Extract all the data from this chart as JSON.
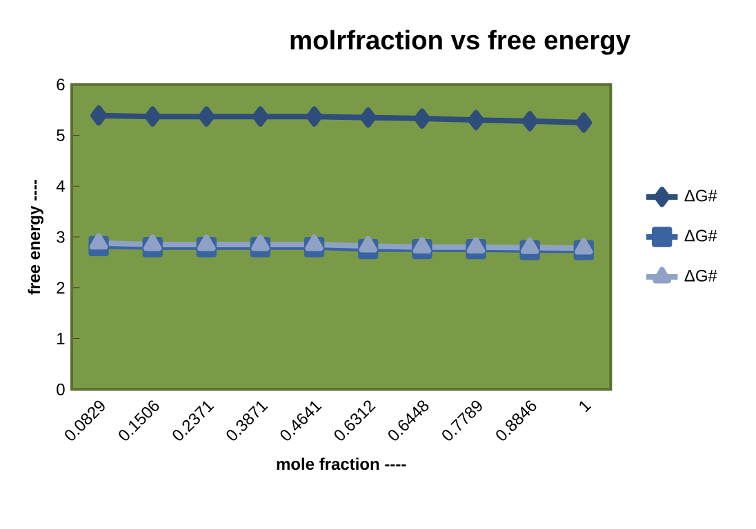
{
  "chart_data": {
    "type": "line",
    "title": "molrfraction vs free energy",
    "xlabel": "mole fraction ----",
    "ylabel": "free energy ----",
    "categories": [
      "0.0829",
      "0.1506",
      "0.2371",
      "0.3871",
      "0.4641",
      "0.6312",
      "0.6448",
      "0.7789",
      "0.8846",
      "1"
    ],
    "series": [
      {
        "name": "ΔG#",
        "color": "#2e4d7b",
        "marker": "diamond",
        "values": [
          5.39,
          5.37,
          5.37,
          5.37,
          5.37,
          5.35,
          5.33,
          5.3,
          5.28,
          5.25
        ]
      },
      {
        "name": "ΔG#",
        "color": "#3a64a0",
        "marker": "square",
        "values": [
          2.82,
          2.8,
          2.8,
          2.8,
          2.8,
          2.76,
          2.76,
          2.76,
          2.74,
          2.74
        ]
      },
      {
        "name": "ΔG#",
        "color": "#8fa2c6",
        "marker": "triangle",
        "values": [
          2.88,
          2.85,
          2.85,
          2.85,
          2.85,
          2.82,
          2.8,
          2.8,
          2.79,
          2.78
        ]
      }
    ],
    "ylim": [
      0,
      6
    ],
    "yticks": [
      0,
      1,
      2,
      3,
      4,
      5,
      6
    ],
    "grid": false,
    "legend": "right",
    "line_style": "solid"
  }
}
